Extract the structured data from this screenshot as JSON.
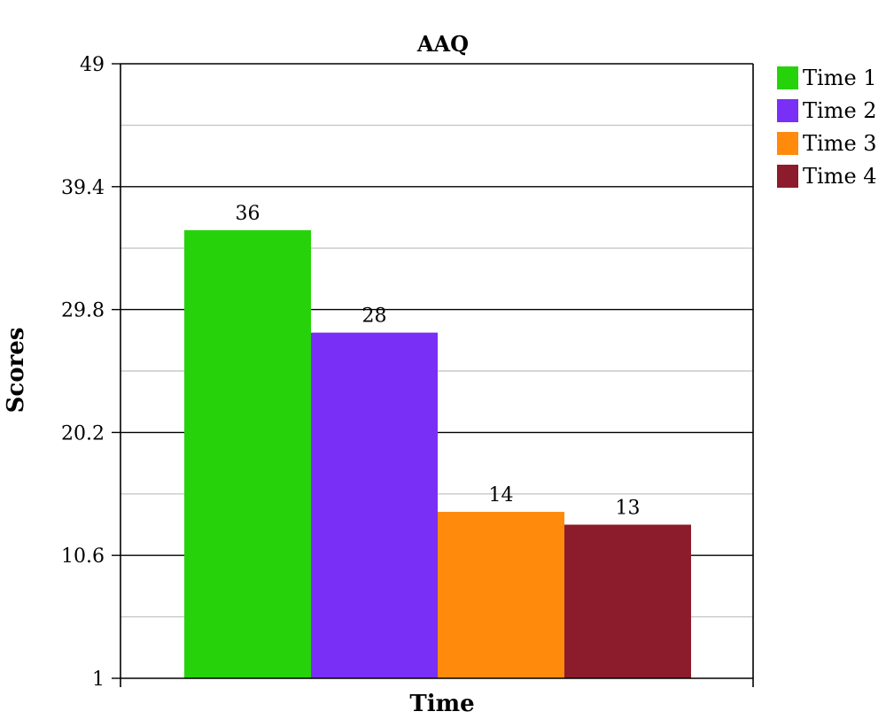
{
  "chart_data": {
    "type": "bar",
    "title": "AAQ",
    "xlabel": "Time",
    "ylabel": "Scores",
    "ylim": [
      1,
      49
    ],
    "yticks": [
      1,
      10.6,
      20.2,
      29.8,
      39.4,
      49
    ],
    "minor_grid": true,
    "legend_position": "right",
    "series": [
      {
        "name": "Time 1",
        "value": 36,
        "label": "36",
        "color": "#26d30a"
      },
      {
        "name": "Time 2",
        "value": 28,
        "label": "28",
        "color": "#7a2ff7"
      },
      {
        "name": "Time 3",
        "value": 14,
        "label": "14",
        "color": "#ff8a0c"
      },
      {
        "name": "Time 4",
        "value": 13,
        "label": "13",
        "color": "#8c1c2b"
      }
    ]
  }
}
